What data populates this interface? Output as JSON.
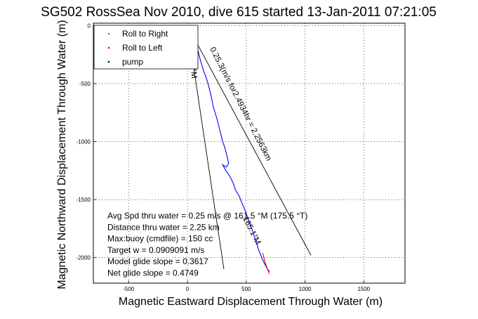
{
  "chart_data": {
    "type": "line",
    "title": "SG502 RossSea Nov 2010, dive 615 started 13-Jan-2011 07:21:05",
    "xlabel": "Magnetic Eastward Displacement Through Water (m)",
    "ylabel": "Magnetic Northward Displacement Through Water (m)",
    "xlim": [
      -800,
      1850
    ],
    "ylim": [
      -2220,
      20
    ],
    "xticks": [
      -500,
      0,
      500,
      1000,
      1500
    ],
    "yticks": [
      0,
      -500,
      -1000,
      -1500,
      -2000
    ],
    "grid": true,
    "legend": {
      "placement": "top-left",
      "entries": [
        {
          "label": "Roll to Right",
          "color": "#00cc00",
          "marker": "dot"
        },
        {
          "label": "Roll to Left",
          "color": "#ff0000",
          "marker": "dot"
        },
        {
          "label": "pump",
          "color": "#000000",
          "marker": "dot"
        }
      ]
    },
    "series": [
      {
        "color": "#0000ff",
        "x": [
          20,
          30,
          45,
          60,
          70,
          85,
          110,
          140,
          160,
          180,
          200,
          220,
          250,
          270,
          290,
          300,
          320,
          340,
          350,
          330,
          300,
          320,
          360,
          390,
          410,
          440,
          460,
          480,
          500,
          520,
          540,
          560,
          575,
          590,
          605,
          620,
          640,
          660,
          680,
          700
        ],
        "y": [
          0,
          -20,
          -60,
          -100,
          -150,
          -200,
          -300,
          -400,
          -450,
          -520,
          -600,
          -700,
          -800,
          -880,
          -960,
          -1000,
          -1060,
          -1140,
          -1190,
          -1220,
          -1200,
          -1240,
          -1300,
          -1360,
          -1420,
          -1470,
          -1520,
          -1570,
          -1620,
          -1680,
          -1730,
          -1790,
          -1840,
          -1880,
          -1930,
          -1970,
          -2020,
          -2060,
          -2100,
          -2120
        ]
      },
      {
        "color": "#ff0000",
        "x": [
          640,
          650,
          660,
          670,
          685,
          695
        ],
        "y": [
          -1960,
          -2000,
          -2040,
          -2070,
          -2110,
          -2140
        ]
      },
      {
        "color": "#000000",
        "x": [
          0,
          1050
        ],
        "y": [
          0,
          -1980
        ]
      },
      {
        "color": "#000000",
        "x": [
          0,
          310
        ],
        "y": [
          0,
          -2100
        ]
      }
    ],
    "line_labels": [
      {
        "text": "0.25.3(m/s for2.4934hr = 2.2563km",
        "x": 190,
        "y": -200,
        "angle": 63
      },
      {
        "text": "162.1°M",
        "x": 10,
        "y": -200,
        "angle": 84
      },
      {
        "text": "165.1°M",
        "x": 470,
        "y": -1660,
        "angle": 63
      }
    ],
    "annotations": [
      "Avg Spd thru water =  0.25 m/s @ 161.5    °M (175.5 °T)",
      "Distance thru water =  2.25 km",
      "Max:buoy (cmdfile) = 150 cc",
      "Target w = 0.0909091 m/s",
      "Model glide slope = 0.3617",
      "Net glide slope = 0.4749"
    ]
  }
}
